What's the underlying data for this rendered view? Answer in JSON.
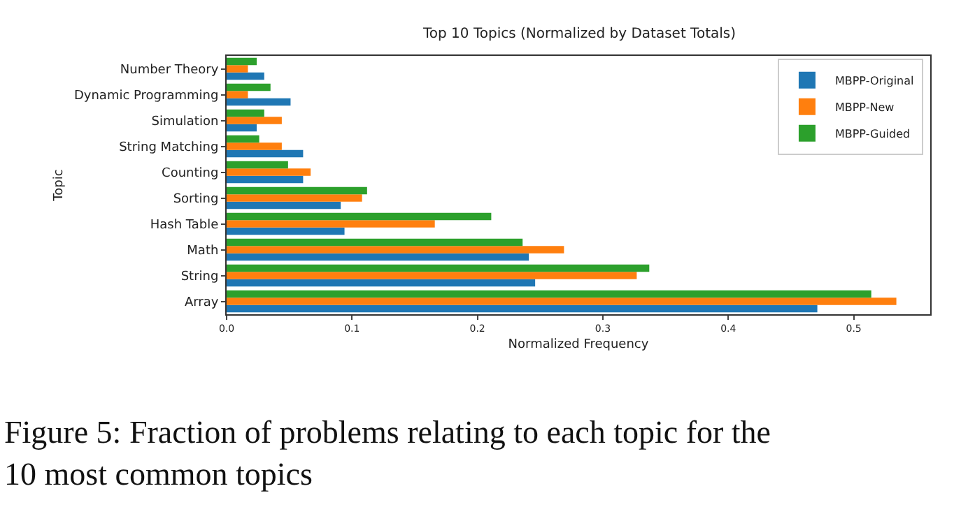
{
  "chart_data": {
    "type": "bar",
    "orientation": "horizontal",
    "title": "Top 10 Topics (Normalized by Dataset Totals)",
    "xlabel": "Normalized Frequency",
    "ylabel": "Topic",
    "categories": [
      "Number Theory",
      "Dynamic Programming",
      "Simulation",
      "String Matching",
      "Counting",
      "Sorting",
      "Hash Table",
      "Math",
      "String",
      "Array"
    ],
    "series": [
      {
        "name": "MBPP-Original",
        "color": "#1f77b4",
        "values": [
          0.03,
          0.051,
          0.024,
          0.061,
          0.061,
          0.091,
          0.094,
          0.241,
          0.246,
          0.471
        ]
      },
      {
        "name": "MBPP-New",
        "color": "#ff7f0e",
        "values": [
          0.017,
          0.017,
          0.044,
          0.044,
          0.067,
          0.108,
          0.166,
          0.269,
          0.327,
          0.534
        ]
      },
      {
        "name": "MBPP-Guided",
        "color": "#2ca02c",
        "values": [
          0.024,
          0.035,
          0.03,
          0.026,
          0.049,
          0.112,
          0.211,
          0.236,
          0.337,
          0.514
        ]
      }
    ],
    "xlim": [
      0,
      0.561
    ],
    "xticks": [
      {
        "value": 0,
        "label": "0.0"
      },
      0.1,
      0.2,
      0.3,
      0.4,
      0.5
    ],
    "grid": false,
    "legend": "top right",
    "annotations": [
      "Figure 5: Fraction of problems relating to each topic for the 10 most common topics"
    ]
  }
}
